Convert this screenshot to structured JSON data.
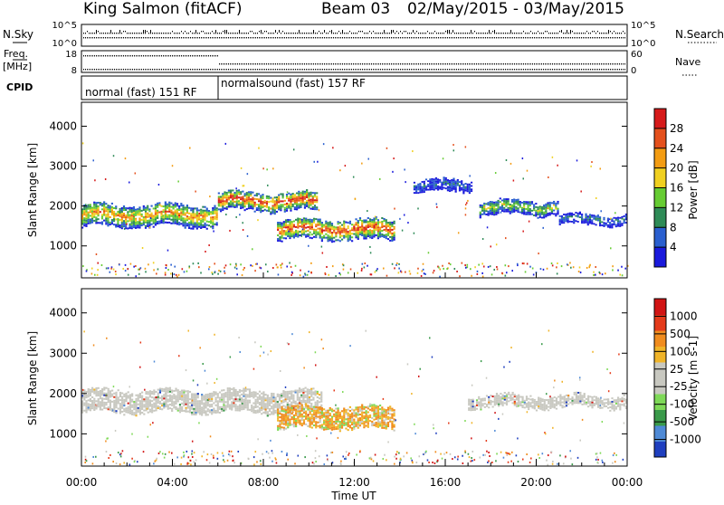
{
  "header": {
    "station": "King Salmon (fitACF)",
    "beam": "Beam 03",
    "date_range": "02/May/2015 - 03/May/2015"
  },
  "top_panels": {
    "nsky_label": "N.Sky",
    "nsearch_label": "N.Search",
    "freq_label_1": "Freq.",
    "freq_label_2": "[MHz]",
    "nave_label": "Nave",
    "cpid_label": "CPID",
    "nsky_ticks": [
      "10^5",
      "10^0"
    ],
    "nsearch_ticks": [
      "10^5",
      "10^0"
    ],
    "freq_ticks": [
      "18",
      "8"
    ],
    "nave_ticks": [
      "60",
      "0"
    ],
    "cpid_segments": [
      "normal (fast) 151 RF",
      "normalsound (fast) 157 RF"
    ]
  },
  "chart_data": [
    {
      "type": "heatmap",
      "name": "power",
      "ylabel": "Slant Range [km]",
      "yticks": [
        "1000",
        "2000",
        "3000",
        "4000"
      ],
      "ylim": [
        200,
        4600
      ],
      "colorbar_label": "Power [dB]",
      "colorbar_ticks": [
        "4",
        "8",
        "12",
        "16",
        "20",
        "24",
        "28"
      ],
      "colorbar_colors": [
        "#1a1adc",
        "#2a5fcf",
        "#2e8b57",
        "#66cc33",
        "#f0d020",
        "#f39c12",
        "#e4501c",
        "#d61a1a"
      ],
      "features": [
        {
          "t": [
            0.0,
            6.0
          ],
          "center": 1750,
          "width": 550,
          "intensity": "moderate-high"
        },
        {
          "t": [
            6.0,
            10.4
          ],
          "center": 2100,
          "width": 450,
          "intensity": "high"
        },
        {
          "t": [
            8.6,
            13.8
          ],
          "center": 1400,
          "width": 500,
          "intensity": "high"
        },
        {
          "t": [
            14.6,
            17.2
          ],
          "center": 2500,
          "width": 300,
          "intensity": "low"
        },
        {
          "t": [
            17.5,
            21.0
          ],
          "center": 1950,
          "width": 350,
          "intensity": "moderate"
        },
        {
          "t": [
            21.0,
            24.0
          ],
          "center": 1650,
          "width": 250,
          "intensity": "low"
        }
      ]
    },
    {
      "type": "heatmap",
      "name": "velocity",
      "ylabel": "Slant Range [km]",
      "yticks": [
        "1000",
        "2000",
        "3000",
        "4000"
      ],
      "ylim": [
        200,
        4600
      ],
      "xlabel": "Time UT",
      "xticks": [
        "00:00",
        "04:00",
        "08:00",
        "12:00",
        "16:00",
        "20:00",
        "00:00"
      ],
      "xlim": [
        0,
        24
      ],
      "colorbar_label": "Velocity [m s-1]",
      "colorbar_ticks": [
        "1000",
        "500",
        "100",
        "25",
        "-25",
        "-100",
        "-500",
        "-1000"
      ],
      "colorbar_colors": [
        "#1f3fbf",
        "#4f8ad6",
        "#3a9a4a",
        "#7ed957",
        "#c8c8c0",
        "#c8c8c0",
        "#f0b428",
        "#f08c1e",
        "#e43a1a",
        "#d11414"
      ],
      "features": [
        {
          "t": [
            0.0,
            10.6
          ],
          "center": 1800,
          "width": 550,
          "velocity": "near zero"
        },
        {
          "t": [
            8.6,
            13.8
          ],
          "center": 1400,
          "width": 550,
          "velocity": "-100 to -500"
        },
        {
          "t": [
            17.0,
            24.0
          ],
          "center": 1800,
          "width": 300,
          "velocity": "near zero"
        }
      ]
    }
  ]
}
